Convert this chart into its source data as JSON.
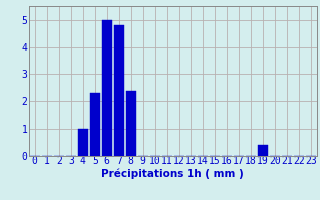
{
  "values": [
    0,
    0,
    0,
    0,
    1.0,
    2.3,
    5.0,
    4.8,
    2.4,
    0,
    0,
    0,
    0,
    0,
    0,
    0,
    0,
    0,
    0,
    0.4,
    0,
    0,
    0,
    0
  ],
  "bar_color": "#0000cc",
  "bar_edge_color": "#0000cc",
  "xlabel": "Précipitations 1h ( mm )",
  "xlim": [
    -0.5,
    23.5
  ],
  "ylim": [
    0,
    5.5
  ],
  "yticks": [
    0,
    1,
    2,
    3,
    4,
    5
  ],
  "xtick_labels": [
    "0",
    "1",
    "2",
    "3",
    "4",
    "5",
    "6",
    "7",
    "8",
    "9",
    "10",
    "11",
    "12",
    "13",
    "14",
    "15",
    "16",
    "17",
    "18",
    "19",
    "20",
    "21",
    "22",
    "23"
  ],
  "background_color": "#d4eeee",
  "grid_color": "#b8b0b0",
  "xlabel_fontsize": 7.5,
  "tick_fontsize": 7,
  "xlabel_color": "#0000cc",
  "tick_color": "#0000cc",
  "bar_width": 0.8
}
